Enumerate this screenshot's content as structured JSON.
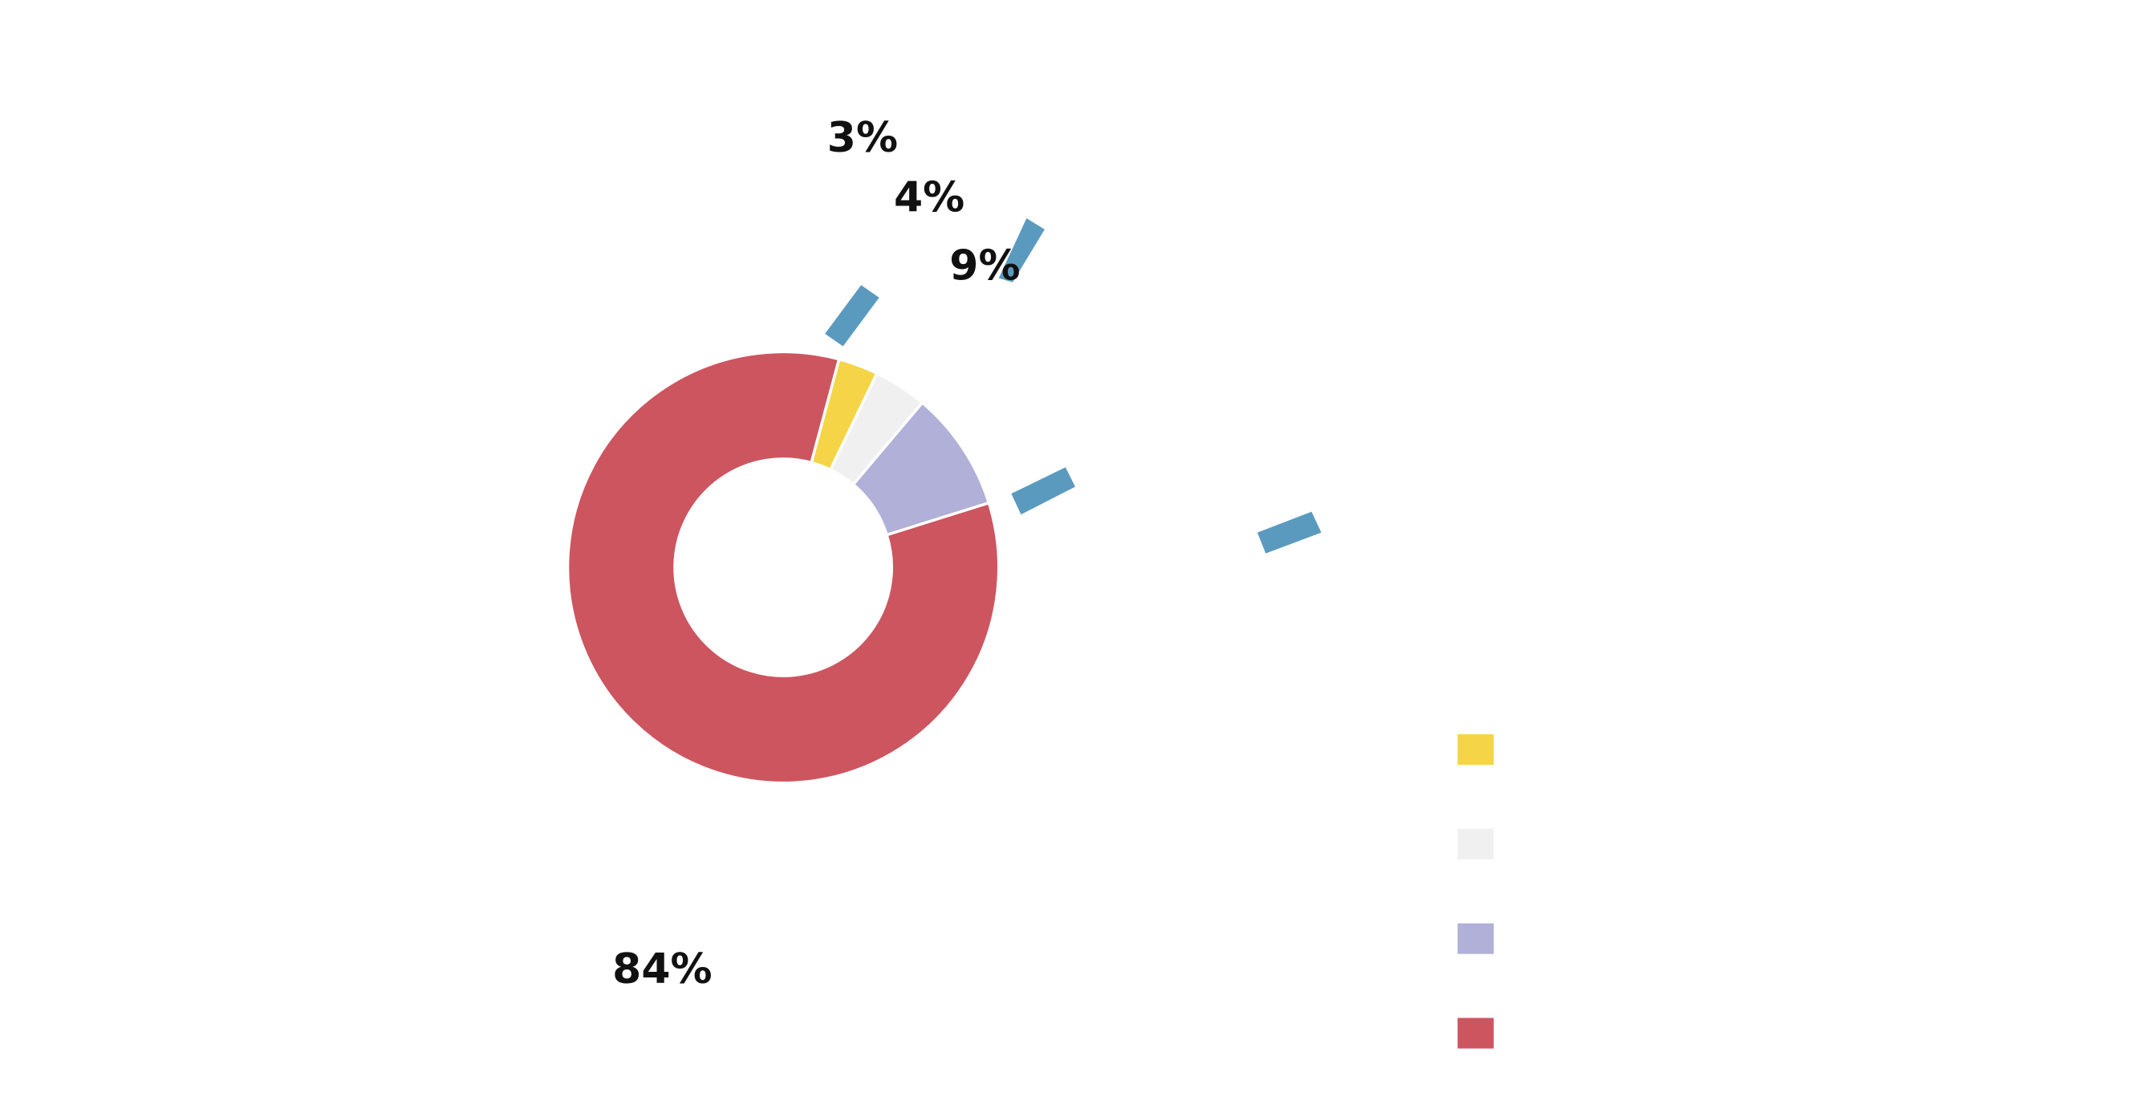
{
  "chart_data": {
    "type": "donut",
    "values": [
      3,
      4,
      9,
      84
    ],
    "value_labels": [
      "3%",
      "4%",
      "9%",
      "84%"
    ],
    "colors": [
      "#f5d547",
      "#f0f0f0",
      "#b0b0d8",
      "#cd5560"
    ]
  }
}
